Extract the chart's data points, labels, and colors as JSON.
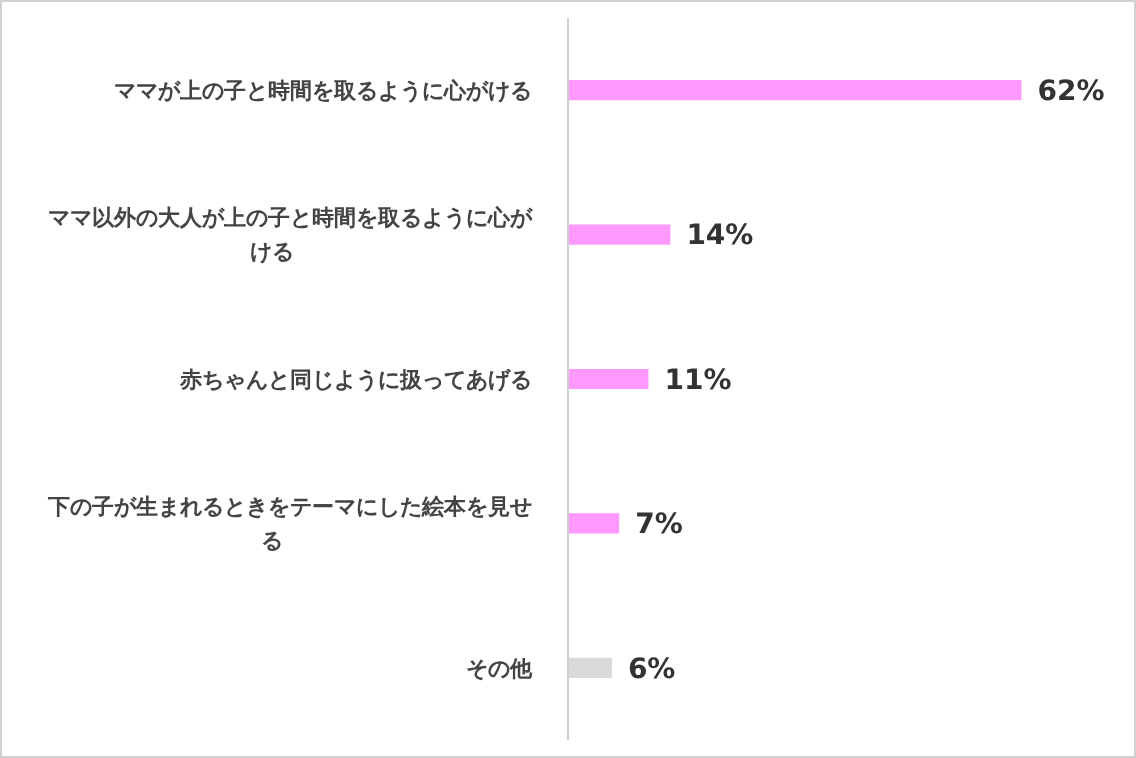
{
  "chart_data": {
    "type": "bar",
    "orientation": "horizontal",
    "categories": [
      "ママが上の子と時間を取るように心がける",
      "ママ以外の大人が上の子と時間を取るように心がける",
      "赤ちゃんと同じように扱ってあげる",
      "下の子が生まれるときをテーマにした絵本を見せる",
      "その他"
    ],
    "values": [
      62,
      14,
      11,
      7,
      6
    ],
    "colors": [
      "#ff99ff",
      "#ff99ff",
      "#ff99ff",
      "#ff99ff",
      "#d9d9d9"
    ],
    "value_labels": [
      "62%",
      "14%",
      "11%",
      "7%",
      "6%"
    ],
    "grid": false,
    "legend": false
  }
}
